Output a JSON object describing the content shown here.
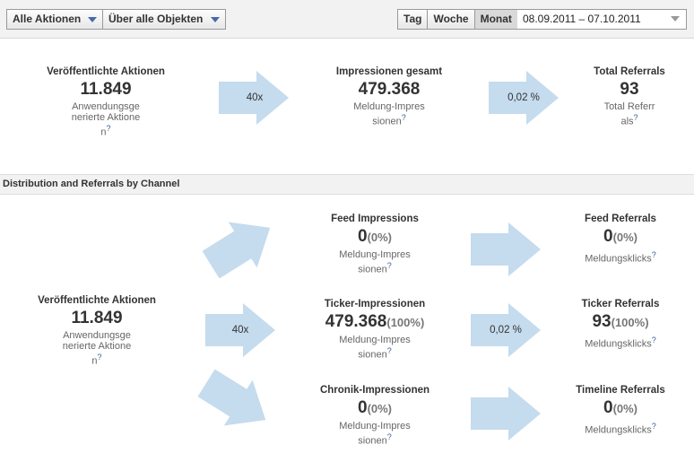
{
  "toolbar": {
    "actions_dropdown": "Alle Aktionen",
    "objects_dropdown": "Über alle Objekten",
    "period_tabs": [
      "Tag",
      "Woche",
      "Monat"
    ],
    "active_period": "Monat",
    "date_range": "08.09.2011 – 07.10.2011"
  },
  "summary": {
    "published": {
      "title": "Veröffentlichte Aktionen",
      "value": "11.849",
      "subtitle": "Anwendungsgenerierte Aktionen"
    },
    "arrow1": "40x",
    "impressions": {
      "title": "Impressionen gesamt",
      "value": "479.368",
      "subtitle": "Meldung-Impressionen"
    },
    "arrow2": "0,02 %",
    "referrals": {
      "title": "Total Referrals",
      "value": "93",
      "subtitle": "Total Referrals"
    }
  },
  "section_title": "Distribution and Referrals by Channel",
  "distribution": {
    "source": {
      "title": "Veröffentlichte Aktionen",
      "value": "11.849",
      "subtitle": "Anwendungsgenerierte Aktionen"
    },
    "middle_arrow": "40x",
    "ticker_arrow": "0,02 %",
    "channels": [
      {
        "title": "Feed Impressions",
        "value": "0",
        "pct": "(0%)",
        "subtitle": "Meldung-Impressionen",
        "ref_title": "Feed Referrals",
        "ref_value": "0",
        "ref_pct": "(0%)",
        "ref_subtitle": "Meldungsklicks"
      },
      {
        "title": "Ticker-Impressionen",
        "value": "479.368",
        "pct": "(100%)",
        "subtitle": "Meldung-Impressionen",
        "ref_title": "Ticker Referrals",
        "ref_value": "93",
        "ref_pct": "(100%)",
        "ref_subtitle": "Meldungsklicks"
      },
      {
        "title": "Chronik-Impressionen",
        "value": "0",
        "pct": "(0%)",
        "subtitle": "Meldung-Impressionen",
        "ref_title": "Timeline Referrals",
        "ref_value": "0",
        "ref_pct": "(0%)",
        "ref_subtitle": "Meldungsklicks"
      }
    ]
  },
  "colors": {
    "arrow": "#c5dbee",
    "accent": "#4a69a8"
  }
}
